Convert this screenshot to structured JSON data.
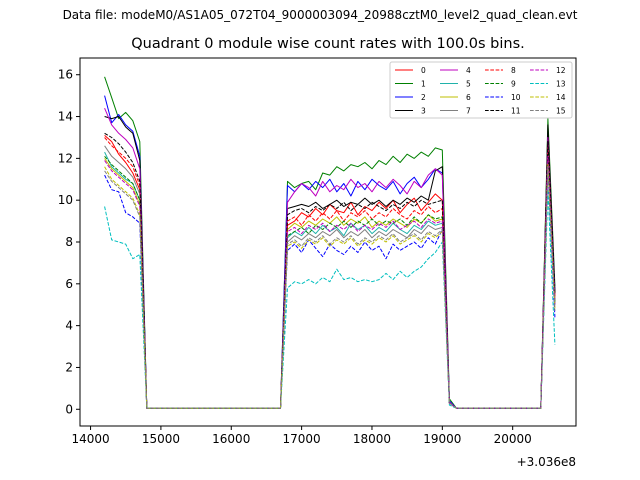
{
  "figure": {
    "suptitle": "Data file: modeM0/AS1A05_072T04_9000003094_20988cztM0_level2_quad_clean.evt",
    "title": "Quadrant 0 module wise count rates with 100.0s bins.",
    "offset_label": "+3.036e8"
  },
  "chart_data": {
    "type": "line",
    "title": "Quadrant 0 module wise count rates with 100.0s bins.",
    "xlabel": "",
    "ylabel": "",
    "x_offset": 303600000,
    "xlim": [
      13850,
      20900
    ],
    "ylim": [
      -0.8,
      16.8
    ],
    "xticks": [
      14000,
      15000,
      16000,
      17000,
      18000,
      19000,
      20000
    ],
    "xtick_labels": [
      "14000",
      "15000",
      "16000",
      "17000",
      "18000",
      "19000",
      "20000"
    ],
    "yticks": [
      0,
      2,
      4,
      6,
      8,
      10,
      12,
      14,
      16
    ],
    "ytick_labels": [
      "0",
      "2",
      "4",
      "6",
      "8",
      "10",
      "12",
      "14",
      "16"
    ],
    "legend_position": "top-right",
    "segments": [
      {
        "start": 14200,
        "n_points": 6
      },
      {
        "start": 14800,
        "n_points": 20
      },
      {
        "start": 16800,
        "n_points": 23
      },
      {
        "start": 19100,
        "n_points": 14
      },
      {
        "start": 20500,
        "n_points": 2
      }
    ],
    "series": [
      {
        "name": "0",
        "color": "#ff0000",
        "dash": "solid",
        "values": [
          13.1,
          12.8,
          12.2,
          11.8,
          11.3,
          10.5,
          0.05,
          0.05,
          0.05,
          0.05,
          0.05,
          0.05,
          0.05,
          0.05,
          0.05,
          0.05,
          0.05,
          0.05,
          0.05,
          0.05,
          0.05,
          0.05,
          0.05,
          0.05,
          0.05,
          0.05,
          8.8,
          9.0,
          9.4,
          9.2,
          9.6,
          9.3,
          9.8,
          9.5,
          9.4,
          9.9,
          9.3,
          9.7,
          9.5,
          9.9,
          9.6,
          10.0,
          9.4,
          9.8,
          10.1,
          9.5,
          9.9,
          10.3,
          10.0,
          0.3,
          0.05,
          0.05,
          0.05,
          0.05,
          0.05,
          0.05,
          0.05,
          0.05,
          0.05,
          0.05,
          0.05,
          0.05,
          0.05,
          12.5,
          5.5
        ]
      },
      {
        "name": "1",
        "color": "#008000",
        "dash": "solid",
        "values": [
          15.9,
          14.9,
          13.9,
          14.2,
          13.8,
          12.8,
          0.05,
          0.05,
          0.05,
          0.05,
          0.05,
          0.05,
          0.05,
          0.05,
          0.05,
          0.05,
          0.05,
          0.05,
          0.05,
          0.05,
          0.05,
          0.05,
          0.05,
          0.05,
          0.05,
          0.05,
          10.9,
          10.6,
          10.8,
          10.9,
          10.5,
          11.3,
          11.2,
          11.6,
          11.4,
          11.7,
          11.6,
          11.8,
          11.5,
          11.9,
          11.7,
          12.1,
          11.8,
          12.2,
          12.0,
          12.3,
          12.1,
          12.5,
          12.4,
          0.5,
          0.05,
          0.05,
          0.05,
          0.05,
          0.05,
          0.05,
          0.05,
          0.05,
          0.05,
          0.05,
          0.05,
          0.05,
          0.05,
          13.9,
          5.9
        ]
      },
      {
        "name": "2",
        "color": "#0000ff",
        "dash": "solid",
        "values": [
          15.0,
          13.7,
          14.1,
          13.6,
          13.3,
          12.1,
          0.05,
          0.05,
          0.05,
          0.05,
          0.05,
          0.05,
          0.05,
          0.05,
          0.05,
          0.05,
          0.05,
          0.05,
          0.05,
          0.05,
          0.05,
          0.05,
          0.05,
          0.05,
          0.05,
          0.05,
          10.7,
          10.4,
          10.8,
          10.5,
          10.9,
          10.6,
          11.0,
          10.4,
          10.8,
          10.2,
          10.9,
          10.5,
          11.0,
          10.7,
          10.5,
          10.9,
          10.3,
          10.8,
          11.1,
          10.6,
          11.0,
          11.5,
          11.3,
          0.4,
          0.05,
          0.05,
          0.05,
          0.05,
          0.05,
          0.05,
          0.05,
          0.05,
          0.05,
          0.05,
          0.05,
          0.05,
          0.05,
          13.2,
          5.7
        ]
      },
      {
        "name": "3",
        "color": "#000000",
        "dash": "solid",
        "values": [
          14.0,
          13.9,
          14.0,
          13.5,
          13.2,
          11.9,
          0.05,
          0.05,
          0.05,
          0.05,
          0.05,
          0.05,
          0.05,
          0.05,
          0.05,
          0.05,
          0.05,
          0.05,
          0.05,
          0.05,
          0.05,
          0.05,
          0.05,
          0.05,
          0.05,
          0.05,
          9.6,
          9.7,
          9.8,
          9.7,
          9.9,
          9.6,
          9.8,
          10.0,
          9.7,
          9.9,
          9.8,
          10.1,
          9.8,
          10.0,
          9.7,
          10.0,
          9.8,
          10.1,
          9.9,
          10.2,
          10.0,
          11.4,
          11.6,
          0.3,
          0.05,
          0.05,
          0.05,
          0.05,
          0.05,
          0.05,
          0.05,
          0.05,
          0.05,
          0.05,
          0.05,
          0.05,
          0.05,
          13.6,
          5.6
        ]
      },
      {
        "name": "4",
        "color": "#bf00bf",
        "dash": "solid",
        "values": [
          14.4,
          13.6,
          13.2,
          12.9,
          12.5,
          11.5,
          0.05,
          0.05,
          0.05,
          0.05,
          0.05,
          0.05,
          0.05,
          0.05,
          0.05,
          0.05,
          0.05,
          0.05,
          0.05,
          0.05,
          0.05,
          0.05,
          0.05,
          0.05,
          0.05,
          0.05,
          9.9,
          10.4,
          10.8,
          10.6,
          10.2,
          10.9,
          10.4,
          10.7,
          10.5,
          11.0,
          10.6,
          10.8,
          10.4,
          10.9,
          10.6,
          11.0,
          10.7,
          10.3,
          10.9,
          10.6,
          11.2,
          11.5,
          11.2,
          0.35,
          0.05,
          0.05,
          0.05,
          0.05,
          0.05,
          0.05,
          0.05,
          0.05,
          0.05,
          0.05,
          0.05,
          0.05,
          0.05,
          13.0,
          5.3
        ]
      },
      {
        "name": "5",
        "color": "#20b2aa",
        "dash": "solid",
        "values": [
          12.3,
          11.6,
          11.3,
          11.0,
          10.8,
          10.0,
          0.05,
          0.05,
          0.05,
          0.05,
          0.05,
          0.05,
          0.05,
          0.05,
          0.05,
          0.05,
          0.05,
          0.05,
          0.05,
          0.05,
          0.05,
          0.05,
          0.05,
          0.05,
          0.05,
          0.05,
          8.2,
          8.5,
          8.3,
          8.7,
          8.4,
          8.8,
          8.5,
          8.7,
          8.3,
          8.9,
          8.6,
          8.8,
          8.4,
          8.7,
          8.5,
          8.9,
          8.6,
          8.4,
          8.8,
          8.6,
          9.0,
          8.8,
          8.9,
          0.3,
          0.05,
          0.05,
          0.05,
          0.05,
          0.05,
          0.05,
          0.05,
          0.05,
          0.05,
          0.05,
          0.05,
          0.05,
          0.05,
          11.8,
          5.0
        ]
      },
      {
        "name": "6",
        "color": "#bfbf00",
        "dash": "solid",
        "values": [
          12.0,
          11.5,
          11.2,
          10.9,
          10.6,
          9.8,
          0.05,
          0.05,
          0.05,
          0.05,
          0.05,
          0.05,
          0.05,
          0.05,
          0.05,
          0.05,
          0.05,
          0.05,
          0.05,
          0.05,
          0.05,
          0.05,
          0.05,
          0.05,
          0.05,
          0.05,
          8.6,
          8.9,
          8.7,
          9.0,
          8.8,
          9.1,
          8.9,
          9.2,
          8.8,
          9.1,
          8.9,
          9.2,
          8.7,
          9.0,
          8.8,
          9.1,
          8.9,
          8.7,
          9.1,
          8.9,
          9.3,
          9.0,
          9.1,
          0.3,
          0.05,
          0.05,
          0.05,
          0.05,
          0.05,
          0.05,
          0.05,
          0.05,
          0.05,
          0.05,
          0.05,
          0.05,
          0.05,
          12.0,
          5.1
        ]
      },
      {
        "name": "7",
        "color": "#808080",
        "dash": "solid",
        "values": [
          12.6,
          12.1,
          11.8,
          11.5,
          11.1,
          10.3,
          0.05,
          0.05,
          0.05,
          0.05,
          0.05,
          0.05,
          0.05,
          0.05,
          0.05,
          0.05,
          0.05,
          0.05,
          0.05,
          0.05,
          0.05,
          0.05,
          0.05,
          0.05,
          0.05,
          0.05,
          8.0,
          8.3,
          8.1,
          8.4,
          8.2,
          8.5,
          8.3,
          8.6,
          8.2,
          8.5,
          8.3,
          8.6,
          8.2,
          8.5,
          8.3,
          8.6,
          8.4,
          8.2,
          8.6,
          8.4,
          8.8,
          8.6,
          8.7,
          0.3,
          0.05,
          0.05,
          0.05,
          0.05,
          0.05,
          0.05,
          0.05,
          0.05,
          0.05,
          0.05,
          0.05,
          0.05,
          0.05,
          11.9,
          5.0
        ]
      },
      {
        "name": "8",
        "color": "#ff0000",
        "dash": "dashed",
        "values": [
          13.0,
          12.6,
          12.3,
          12.0,
          11.6,
          10.7,
          0.05,
          0.05,
          0.05,
          0.05,
          0.05,
          0.05,
          0.05,
          0.05,
          0.05,
          0.05,
          0.05,
          0.05,
          0.05,
          0.05,
          0.05,
          0.05,
          0.05,
          0.05,
          0.05,
          0.05,
          9.0,
          9.2,
          8.8,
          9.3,
          9.0,
          9.4,
          9.1,
          9.5,
          9.0,
          9.4,
          9.2,
          9.5,
          9.1,
          9.4,
          9.2,
          9.6,
          9.3,
          9.1,
          9.5,
          9.3,
          9.7,
          9.4,
          9.6,
          0.3,
          0.05,
          0.05,
          0.05,
          0.05,
          0.05,
          0.05,
          0.05,
          0.05,
          0.05,
          0.05,
          0.05,
          0.05,
          0.05,
          12.6,
          5.4
        ]
      },
      {
        "name": "9",
        "color": "#008000",
        "dash": "dashed",
        "values": [
          12.1,
          11.7,
          11.4,
          11.1,
          10.8,
          10.0,
          0.05,
          0.05,
          0.05,
          0.05,
          0.05,
          0.05,
          0.05,
          0.05,
          0.05,
          0.05,
          0.05,
          0.05,
          0.05,
          0.05,
          0.05,
          0.05,
          0.05,
          0.05,
          0.05,
          0.05,
          8.3,
          8.5,
          8.7,
          8.4,
          8.8,
          8.6,
          8.9,
          8.7,
          9.0,
          8.7,
          9.0,
          8.8,
          9.1,
          8.8,
          9.0,
          8.9,
          9.1,
          8.8,
          9.2,
          8.9,
          9.3,
          9.1,
          9.2,
          0.3,
          0.05,
          0.05,
          0.05,
          0.05,
          0.05,
          0.05,
          0.05,
          0.05,
          0.05,
          0.05,
          0.05,
          0.05,
          0.05,
          12.2,
          5.1
        ]
      },
      {
        "name": "10",
        "color": "#0000ff",
        "dash": "dashed",
        "values": [
          11.2,
          10.5,
          10.4,
          9.4,
          9.2,
          8.9,
          0.05,
          0.05,
          0.05,
          0.05,
          0.05,
          0.05,
          0.05,
          0.05,
          0.05,
          0.05,
          0.05,
          0.05,
          0.05,
          0.05,
          0.05,
          0.05,
          0.05,
          0.05,
          0.05,
          0.05,
          7.6,
          7.9,
          7.5,
          8.1,
          7.7,
          7.3,
          7.9,
          7.6,
          7.4,
          7.8,
          7.5,
          8.0,
          7.6,
          7.8,
          7.2,
          7.9,
          7.6,
          7.8,
          8.0,
          7.7,
          8.2,
          7.9,
          8.6,
          0.3,
          0.05,
          0.05,
          0.05,
          0.05,
          0.05,
          0.05,
          0.05,
          0.05,
          0.05,
          0.05,
          0.05,
          0.05,
          0.05,
          11.5,
          4.4
        ]
      },
      {
        "name": "11",
        "color": "#000000",
        "dash": "dashed",
        "values": [
          13.2,
          13.0,
          12.7,
          12.3,
          11.8,
          10.9,
          0.05,
          0.05,
          0.05,
          0.05,
          0.05,
          0.05,
          0.05,
          0.05,
          0.05,
          0.05,
          0.05,
          0.05,
          0.05,
          0.05,
          0.05,
          0.05,
          0.05,
          0.05,
          0.05,
          0.05,
          9.3,
          9.5,
          9.6,
          9.4,
          9.7,
          9.5,
          9.8,
          9.6,
          9.9,
          9.5,
          9.8,
          9.6,
          9.9,
          9.7,
          9.5,
          9.8,
          9.6,
          9.9,
          9.7,
          10.0,
          9.8,
          9.9,
          10.0,
          0.3,
          0.05,
          0.05,
          0.05,
          0.05,
          0.05,
          0.05,
          0.05,
          0.05,
          0.05,
          0.05,
          0.05,
          0.05,
          0.05,
          12.8,
          5.5
        ]
      },
      {
        "name": "12",
        "color": "#bf00bf",
        "dash": "dashed",
        "values": [
          11.9,
          11.4,
          11.1,
          10.8,
          10.5,
          9.7,
          0.05,
          0.05,
          0.05,
          0.05,
          0.05,
          0.05,
          0.05,
          0.05,
          0.05,
          0.05,
          0.05,
          0.05,
          0.05,
          0.05,
          0.05,
          0.05,
          0.05,
          0.05,
          0.05,
          0.05,
          8.5,
          8.7,
          8.4,
          8.8,
          8.6,
          8.9,
          8.5,
          8.8,
          8.6,
          8.9,
          8.5,
          8.8,
          8.6,
          8.9,
          8.7,
          9.0,
          8.6,
          8.8,
          9.0,
          8.7,
          9.1,
          8.9,
          9.0,
          0.3,
          0.05,
          0.05,
          0.05,
          0.05,
          0.05,
          0.05,
          0.05,
          0.05,
          0.05,
          0.05,
          0.05,
          0.05,
          0.05,
          12.1,
          5.0
        ]
      },
      {
        "name": "13",
        "color": "#00bfbf",
        "dash": "dashed",
        "values": [
          9.7,
          8.1,
          8.0,
          7.9,
          7.2,
          7.4,
          0.05,
          0.05,
          0.05,
          0.05,
          0.05,
          0.05,
          0.05,
          0.05,
          0.05,
          0.05,
          0.05,
          0.05,
          0.05,
          0.05,
          0.05,
          0.05,
          0.05,
          0.05,
          0.05,
          0.05,
          5.8,
          6.1,
          6.0,
          6.2,
          6.0,
          6.3,
          6.1,
          6.7,
          6.2,
          6.3,
          6.1,
          6.2,
          6.1,
          6.2,
          6.5,
          6.2,
          6.6,
          6.3,
          6.6,
          6.8,
          7.2,
          7.5,
          8.0,
          0.2,
          0.05,
          0.05,
          0.05,
          0.05,
          0.05,
          0.05,
          0.05,
          0.05,
          0.05,
          0.05,
          0.05,
          0.05,
          0.05,
          10.5,
          3.1
        ]
      },
      {
        "name": "14",
        "color": "#bfbf00",
        "dash": "dashed",
        "values": [
          11.6,
          11.0,
          10.7,
          10.4,
          10.1,
          9.3,
          0.05,
          0.05,
          0.05,
          0.05,
          0.05,
          0.05,
          0.05,
          0.05,
          0.05,
          0.05,
          0.05,
          0.05,
          0.05,
          0.05,
          0.05,
          0.05,
          0.05,
          0.05,
          0.05,
          0.05,
          7.8,
          8.0,
          7.7,
          8.1,
          7.9,
          8.2,
          7.8,
          8.1,
          7.9,
          8.2,
          7.8,
          8.1,
          7.9,
          8.2,
          8.0,
          8.3,
          7.9,
          8.1,
          8.3,
          8.0,
          8.4,
          8.2,
          8.5,
          0.3,
          0.05,
          0.05,
          0.05,
          0.05,
          0.05,
          0.05,
          0.05,
          0.05,
          0.05,
          0.05,
          0.05,
          0.05,
          0.05,
          11.7,
          4.8
        ]
      },
      {
        "name": "15",
        "color": "#808080",
        "dash": "dashed",
        "values": [
          11.4,
          10.9,
          10.6,
          10.3,
          10.0,
          9.2,
          0.05,
          0.05,
          0.05,
          0.05,
          0.05,
          0.05,
          0.05,
          0.05,
          0.05,
          0.05,
          0.05,
          0.05,
          0.05,
          0.05,
          0.05,
          0.05,
          0.05,
          0.05,
          0.05,
          0.05,
          7.9,
          8.1,
          7.8,
          8.2,
          8.0,
          8.3,
          7.9,
          8.2,
          8.0,
          8.3,
          7.9,
          8.2,
          8.0,
          8.3,
          8.1,
          8.4,
          8.0,
          8.2,
          8.4,
          8.1,
          8.5,
          8.3,
          8.6,
          0.3,
          0.05,
          0.05,
          0.05,
          0.05,
          0.05,
          0.05,
          0.05,
          0.05,
          0.05,
          0.05,
          0.05,
          0.05,
          0.05,
          11.6,
          4.7
        ]
      }
    ]
  }
}
